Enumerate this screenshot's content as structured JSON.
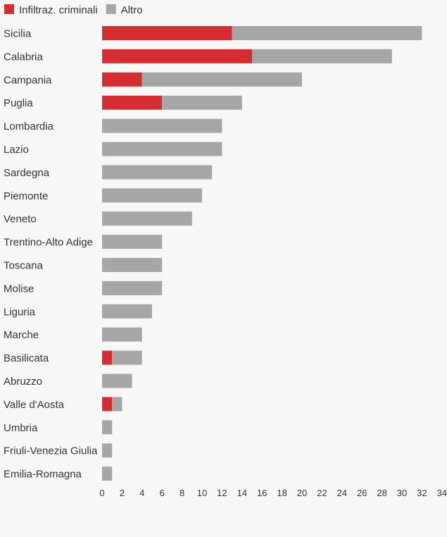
{
  "chart_data": {
    "type": "bar",
    "orientation": "horizontal",
    "stacked": true,
    "legend_position": "top-left",
    "grid": false,
    "xlim": [
      0,
      34
    ],
    "x_ticks": [
      0,
      2,
      4,
      6,
      8,
      10,
      12,
      14,
      16,
      18,
      20,
      22,
      24,
      26,
      28,
      30,
      32,
      34
    ],
    "categories": [
      "Sicilia",
      "Calabria",
      "Campania",
      "Puglia",
      "Lombardia",
      "Lazio",
      "Sardegna",
      "Piemonte",
      "Veneto",
      "Trentino-Alto Adige",
      "Toscana",
      "Molise",
      "Liguria",
      "Marche",
      "Basilicata",
      "Abruzzo",
      "Valle d'Aosta",
      "Umbria",
      "Friuli-Venezia Giulia",
      "Emilia-Romagna"
    ],
    "series": [
      {
        "name": "Infiltraz. criminali",
        "color": "#d62d33",
        "values": [
          13,
          15,
          4,
          6,
          0,
          0,
          0,
          0,
          0,
          0,
          0,
          0,
          0,
          0,
          1,
          0,
          1,
          0,
          0,
          0
        ]
      },
      {
        "name": "Altro",
        "color": "#a6a6a6",
        "values": [
          19,
          14,
          16,
          8,
          12,
          12,
          11,
          10,
          9,
          6,
          6,
          6,
          5,
          4,
          3,
          3,
          1,
          1,
          1,
          1
        ]
      }
    ]
  }
}
